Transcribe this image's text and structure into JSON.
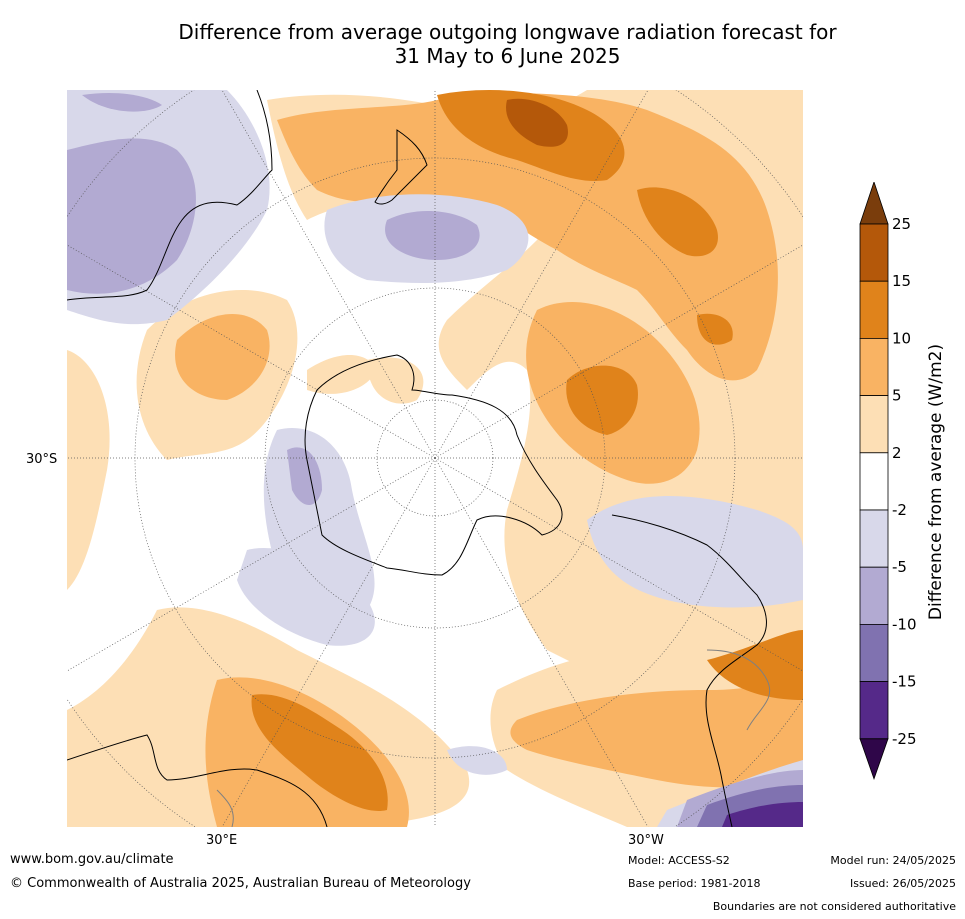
{
  "title": {
    "line1": "Difference from average outgoing longwave radiation forecast for",
    "line2": "31 May to 6 June 2025"
  },
  "map": {
    "projection": "south-polar-stereographic",
    "labels": {
      "lat_left": "30°S",
      "lon_bottom_left": "30°E",
      "lon_bottom_right": "30°W"
    },
    "colors": {
      "gt25": "#7a3d0c",
      "c15_25": "#b4580a",
      "c10_15": "#e0831b",
      "c5_10": "#f9b363",
      "c2_5": "#fddfb5",
      "neutral": "#ffffff",
      "cm2_m5": "#d8d8ea",
      "cm5_m10": "#b2aad2",
      "cm10_m15": "#8072b0",
      "cm15_m25": "#552989",
      "lt_m25": "#2f0649",
      "coast": "#000000",
      "border": "#808080"
    }
  },
  "colorbar": {
    "label": "Difference from average (W/m2)",
    "ticks": [
      "25",
      "15",
      "10",
      "5",
      "2",
      "-2",
      "-5",
      "-10",
      "-15",
      "-25"
    ],
    "colors": [
      "#b4580a",
      "#e0831b",
      "#f9b363",
      "#fddfb5",
      "#ffffff",
      "#d8d8ea",
      "#b2aad2",
      "#8072b0",
      "#552989"
    ],
    "top_arrow_color": "#7a3d0c",
    "bottom_arrow_color": "#2f0649"
  },
  "footer": {
    "website": "www.bom.gov.au/climate",
    "copyright": "© Commonwealth of Australia 2025, Australian Bureau of Meteorology",
    "model": "Model: ACCESS-S2",
    "base_period": "Base period: 1981-2018",
    "model_run": "Model run: 24/05/2025",
    "issued": "Issued: 26/05/2025",
    "disclaimer": "Boundaries are not considered authoritative"
  }
}
